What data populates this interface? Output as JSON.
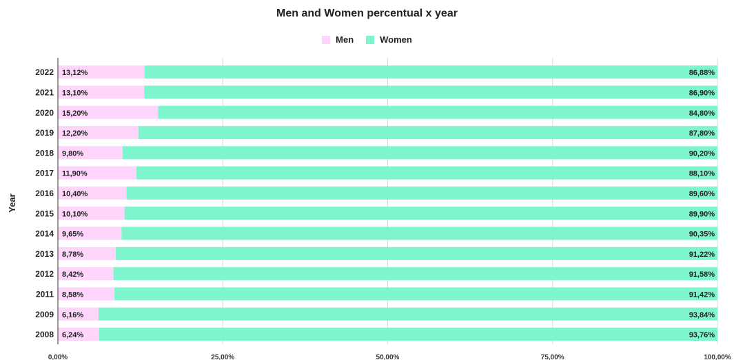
{
  "chart_data": {
    "type": "bar",
    "stacked": true,
    "orientation": "horizontal",
    "title": "Men and Women percentual x year",
    "ylabel": "Year",
    "xlabel": "",
    "xlim": [
      0,
      100
    ],
    "x_ticks": [
      0,
      25,
      50,
      75,
      100
    ],
    "x_tick_labels": [
      "0,00%",
      "25,00%",
      "50,00%",
      "75,00%",
      "100,00%"
    ],
    "grid": true,
    "legend": "top-center",
    "categories": [
      "2022",
      "2021",
      "2020",
      "2019",
      "2018",
      "2017",
      "2016",
      "2015",
      "2014",
      "2013",
      "2012",
      "2011",
      "2009",
      "2008"
    ],
    "series": [
      {
        "name": "Men",
        "color": "#ffd6fb",
        "values": [
          13.12,
          13.1,
          15.2,
          12.2,
          9.8,
          11.9,
          10.4,
          10.1,
          9.65,
          8.78,
          8.42,
          8.58,
          6.16,
          6.24
        ],
        "labels": [
          "13,12%",
          "13,10%",
          "15,20%",
          "12,20%",
          "9,80%",
          "11,90%",
          "10,40%",
          "10,10%",
          "9,65%",
          "8,78%",
          "8,42%",
          "8,58%",
          "6,16%",
          "6,24%"
        ]
      },
      {
        "name": "Women",
        "color": "#7ff5cf",
        "values": [
          86.88,
          86.9,
          84.8,
          87.8,
          90.2,
          88.1,
          89.6,
          89.9,
          90.35,
          91.22,
          91.58,
          91.42,
          93.84,
          93.76
        ],
        "labels": [
          "86,88%",
          "86,90%",
          "84,80%",
          "87,80%",
          "90,20%",
          "88,10%",
          "89,60%",
          "89,90%",
          "90,35%",
          "91,22%",
          "91,58%",
          "91,42%",
          "93,84%",
          "93,76%"
        ]
      }
    ]
  }
}
